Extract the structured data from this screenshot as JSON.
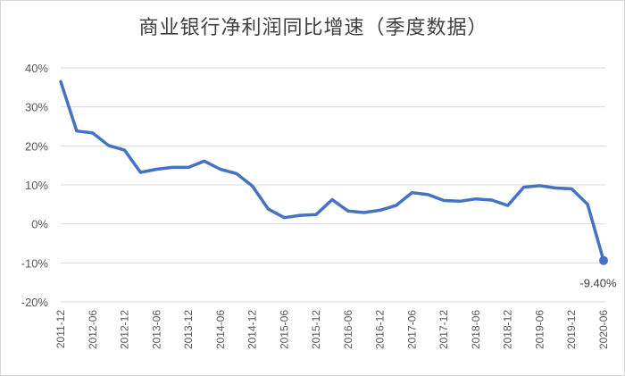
{
  "chart_data": {
    "type": "line",
    "title": "商业银行净利润同比增速（季度数据）",
    "xlabel": "",
    "ylabel": "",
    "ylim": [
      -20,
      40
    ],
    "ytick_values": [
      -20,
      -10,
      0,
      10,
      20,
      30,
      40
    ],
    "ytick_labels": [
      "-20%",
      "-10%",
      "0%",
      "10%",
      "20%",
      "30%",
      "40%"
    ],
    "xtick_labels": [
      "2011-12",
      "2012-06",
      "2012-12",
      "2013-06",
      "2013-12",
      "2014-06",
      "2014-12",
      "2015-06",
      "2015-12",
      "2016-06",
      "2016-12",
      "2017-06",
      "2017-12",
      "2018-06",
      "2018-12",
      "2019-06",
      "2019-12",
      "2020-06"
    ],
    "grid": "horizontal",
    "line_color": "#4472C4",
    "categories": [
      "2011-12",
      "2012-03",
      "2012-06",
      "2012-09",
      "2012-12",
      "2013-03",
      "2013-06",
      "2013-09",
      "2013-12",
      "2014-03",
      "2014-06",
      "2014-09",
      "2014-12",
      "2015-03",
      "2015-06",
      "2015-09",
      "2015-12",
      "2016-03",
      "2016-06",
      "2016-09",
      "2016-12",
      "2017-03",
      "2017-06",
      "2017-09",
      "2017-12",
      "2018-03",
      "2018-06",
      "2018-09",
      "2018-12",
      "2019-03",
      "2019-06",
      "2019-09",
      "2019-12",
      "2020-03",
      "2020-06"
    ],
    "series": [
      {
        "values": [
          36.5,
          23.8,
          23.3,
          20.1,
          18.9,
          13.2,
          14.0,
          14.5,
          14.5,
          16.1,
          14.0,
          12.9,
          9.7,
          3.8,
          1.6,
          2.2,
          2.4,
          6.2,
          3.3,
          2.9,
          3.5,
          4.7,
          8.0,
          7.5,
          6.0,
          5.8,
          6.4,
          6.1,
          4.7,
          9.4,
          9.8,
          9.2,
          9.0,
          5.0,
          -9.4
        ]
      }
    ],
    "annotations": [
      {
        "label": "-9.40%",
        "category": "2020-06",
        "value": -9.4
      }
    ]
  }
}
